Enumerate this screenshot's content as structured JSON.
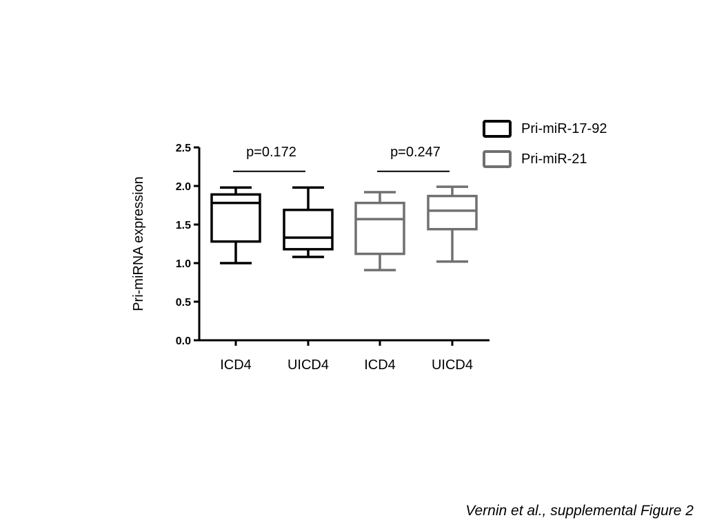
{
  "chart_data": {
    "type": "box",
    "title": "",
    "xlabel": "",
    "ylabel": "Pri-miRNA expression",
    "ylim": [
      0,
      2.5
    ],
    "yticks": [
      "0.0",
      "0.5",
      "1.0",
      "1.5",
      "2.0",
      "2.5"
    ],
    "grid": false,
    "legend_position": "top-right",
    "series": [
      {
        "name": "Pri-miR-17-92",
        "color": "#000000"
      },
      {
        "name": "Pri-miR-21",
        "color": "#707070"
      }
    ],
    "boxes": [
      {
        "label": "ICD4",
        "series": 0,
        "min": 1.0,
        "q1": 1.28,
        "median": 1.78,
        "q3": 1.89,
        "max": 1.98
      },
      {
        "label": "UICD4",
        "series": 0,
        "min": 1.08,
        "q1": 1.18,
        "median": 1.33,
        "q3": 1.69,
        "max": 1.98
      },
      {
        "label": "ICD4",
        "series": 1,
        "min": 0.91,
        "q1": 1.12,
        "median": 1.57,
        "q3": 1.78,
        "max": 1.92
      },
      {
        "label": "UICD4",
        "series": 1,
        "min": 1.02,
        "q1": 1.44,
        "median": 1.68,
        "q3": 1.87,
        "max": 1.99
      }
    ],
    "annotations": [
      {
        "text": "p=0.172",
        "from": 0,
        "to": 1,
        "y": 2.19
      },
      {
        "text": "p=0.247",
        "from": 2,
        "to": 3,
        "y": 2.19
      }
    ]
  },
  "caption": "Vernin et al., supplemental Figure 2"
}
